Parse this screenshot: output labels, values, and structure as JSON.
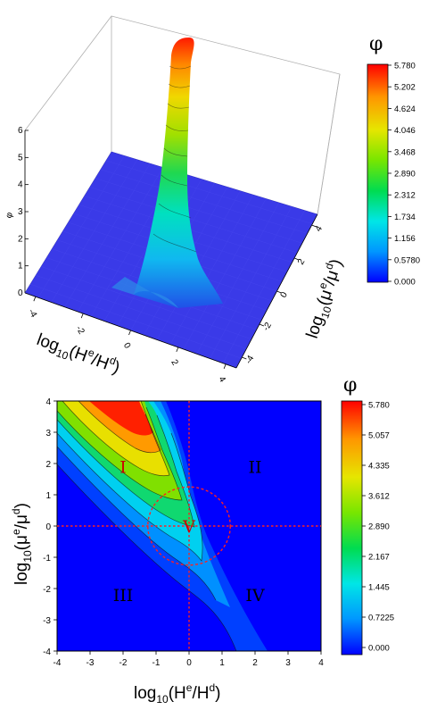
{
  "chart_data": [
    {
      "type": "surface3d",
      "title": "",
      "xlabel_base": "log",
      "xlabel_sub": "10",
      "xlabel_open": "(H",
      "xlabel_sup1": "e",
      "xlabel_mid": "/H",
      "xlabel_sup2": "d",
      "xlabel_close": ")",
      "ylabel_base": "log",
      "ylabel_sub": "10",
      "ylabel_open": "(μ",
      "ylabel_sup1": "e",
      "ylabel_mid": "/μ",
      "ylabel_sup2": "d",
      "ylabel_close": ")",
      "zlabel": "φ",
      "xlim": [
        -4,
        4
      ],
      "ylim": [
        -4,
        4
      ],
      "zlim": [
        0,
        6
      ],
      "x_ticks": [
        "-4",
        "-2",
        "0",
        "2",
        "4"
      ],
      "y_ticks": [
        "4",
        "2",
        "0",
        "-2",
        "-4"
      ],
      "z_ticks": [
        "0",
        "1",
        "2",
        "3",
        "4",
        "5",
        "6"
      ],
      "colorbar_title": "φ",
      "colorbar_ticks": [
        "5.780",
        "5.202",
        "4.624",
        "4.046",
        "3.468",
        "2.890",
        "2.312",
        "1.734",
        "1.156",
        "0.5780",
        "0.000"
      ],
      "colormap": [
        "#0000ff",
        "#0096ff",
        "#00e6e6",
        "#00dc50",
        "#78e600",
        "#e6e600",
        "#ff9600",
        "#ff0000"
      ]
    },
    {
      "type": "heatmap",
      "title": "",
      "xlabel_base": "log",
      "xlabel_sub": "10",
      "xlabel_open": "(H",
      "xlabel_sup1": "e",
      "xlabel_mid": "/H",
      "xlabel_sup2": "d",
      "xlabel_close": ")",
      "ylabel_base": "log",
      "ylabel_sub": "10",
      "ylabel_open": "(μ",
      "ylabel_sup1": "e",
      "ylabel_mid": "/μ",
      "ylabel_sup2": "d",
      "ylabel_close": ")",
      "xlim": [
        -4,
        4
      ],
      "ylim": [
        -4,
        4
      ],
      "x_ticks": [
        "-4",
        "-3",
        "-2",
        "-1",
        "0",
        "1",
        "2",
        "3",
        "4"
      ],
      "y_ticks": [
        "4",
        "3",
        "2",
        "1",
        "0",
        "-1",
        "-2",
        "-3",
        "-4"
      ],
      "regions": [
        {
          "label": "I",
          "x": -2.0,
          "y": 1.9,
          "color": "#cc0000"
        },
        {
          "label": "II",
          "x": 2.0,
          "y": 1.9,
          "color": "#000000"
        },
        {
          "label": "III",
          "x": -2.0,
          "y": -2.2,
          "color": "#000000"
        },
        {
          "label": "IV",
          "x": 2.0,
          "y": -2.2,
          "color": "#000000"
        },
        {
          "label": "V",
          "x": 0.0,
          "y": 0.0,
          "color": "#cc0000"
        }
      ],
      "dashed_circle": {
        "cx": 0,
        "cy": 0,
        "r": 1.25,
        "color": "#ff2020"
      },
      "dashed_lines": [
        {
          "axis": "x",
          "value": 0
        },
        {
          "axis": "y",
          "value": 0
        }
      ],
      "colorbar_title": "φ",
      "colorbar_ticks": [
        "5.780",
        "5.057",
        "4.335",
        "3.612",
        "2.890",
        "2.167",
        "1.445",
        "0.7225",
        "0.000"
      ],
      "zlim": [
        0,
        5.78
      ],
      "colormap": [
        "#0000ff",
        "#0096ff",
        "#00e6e6",
        "#00dc50",
        "#78e600",
        "#e6e600",
        "#ff9600",
        "#ff0000"
      ]
    }
  ]
}
